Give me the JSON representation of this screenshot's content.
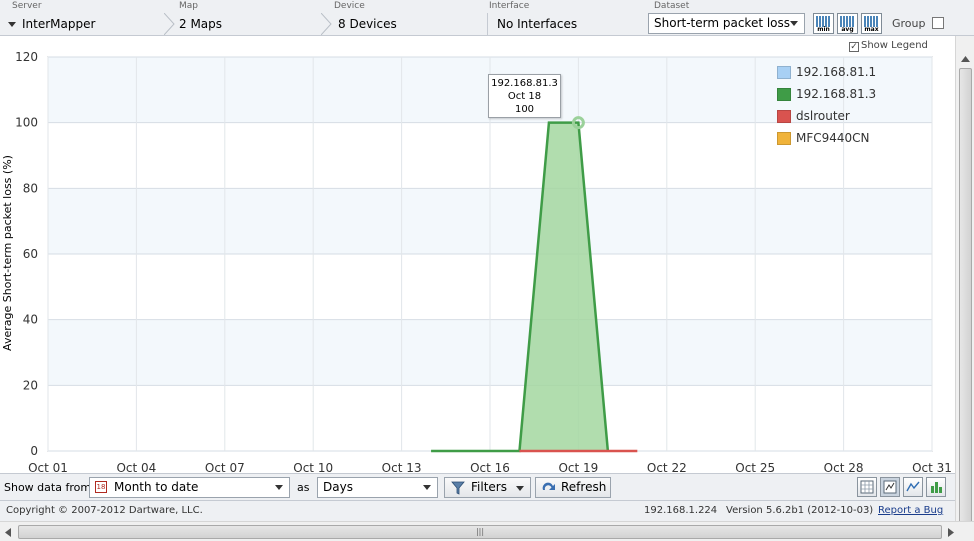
{
  "topbar": {
    "server": {
      "label": "Server",
      "value": "InterMapper"
    },
    "map": {
      "label": "Map",
      "value": "2 Maps"
    },
    "device": {
      "label": "Device",
      "value": "8 Devices"
    },
    "interface": {
      "label": "Interface",
      "value": "No Interfaces"
    },
    "dataset": {
      "label": "Dataset",
      "value": "Short-term packet loss"
    },
    "stat_buttons": [
      "min",
      "avg",
      "max"
    ],
    "group_label": "Group"
  },
  "show_legend_label": "Show Legend",
  "chart_data": {
    "type": "area",
    "ylabel": "Average Short-term packet loss (%)",
    "xlabel": "",
    "ylim": [
      0,
      120
    ],
    "yticks": [
      0,
      20,
      40,
      60,
      80,
      100,
      120
    ],
    "xticks": [
      "Oct 01",
      "Oct 04",
      "Oct 07",
      "Oct 10",
      "Oct 13",
      "Oct 16",
      "Oct 19",
      "Oct 22",
      "Oct 25",
      "Oct 28",
      "Oct 31"
    ],
    "xlim_day": [
      1,
      31
    ],
    "grid": true,
    "legend_position": "top-right",
    "series": [
      {
        "name": "192.168.81.1",
        "color": "#a8d0f4",
        "points": []
      },
      {
        "name": "192.168.81.3",
        "color": "#3f9c47",
        "fill": "#a3d7a0",
        "points": [
          [
            14,
            0
          ],
          [
            17,
            0
          ],
          [
            18,
            100
          ],
          [
            19,
            100
          ],
          [
            20,
            0
          ]
        ]
      },
      {
        "name": "dslrouter",
        "color": "#d9534f",
        "points": [
          [
            17,
            0
          ],
          [
            21,
            0
          ]
        ]
      },
      {
        "name": "MFC9440CN",
        "color": "#f0b33a",
        "points": []
      }
    ],
    "tooltip": {
      "device": "192.168.81.3",
      "date": "Oct 18",
      "value": "100"
    }
  },
  "controls": {
    "show_data_from_label": "Show data from",
    "range_value": "Month to date",
    "as_label": "as",
    "unit_value": "Days",
    "filters_label": "Filters",
    "refresh_label": "Refresh",
    "view_icons": [
      "table-view-icon",
      "detail-view-icon",
      "line-chart-icon",
      "bar-chart-icon"
    ]
  },
  "status": {
    "copyright": "Copyright © 2007-2012 Dartware, LLC.",
    "ip": "192.168.1.224",
    "version": "Version 5.6.2b1 (2012-10-03)",
    "bug_link": "Report a Bug"
  },
  "hscroll_grip": "|||"
}
